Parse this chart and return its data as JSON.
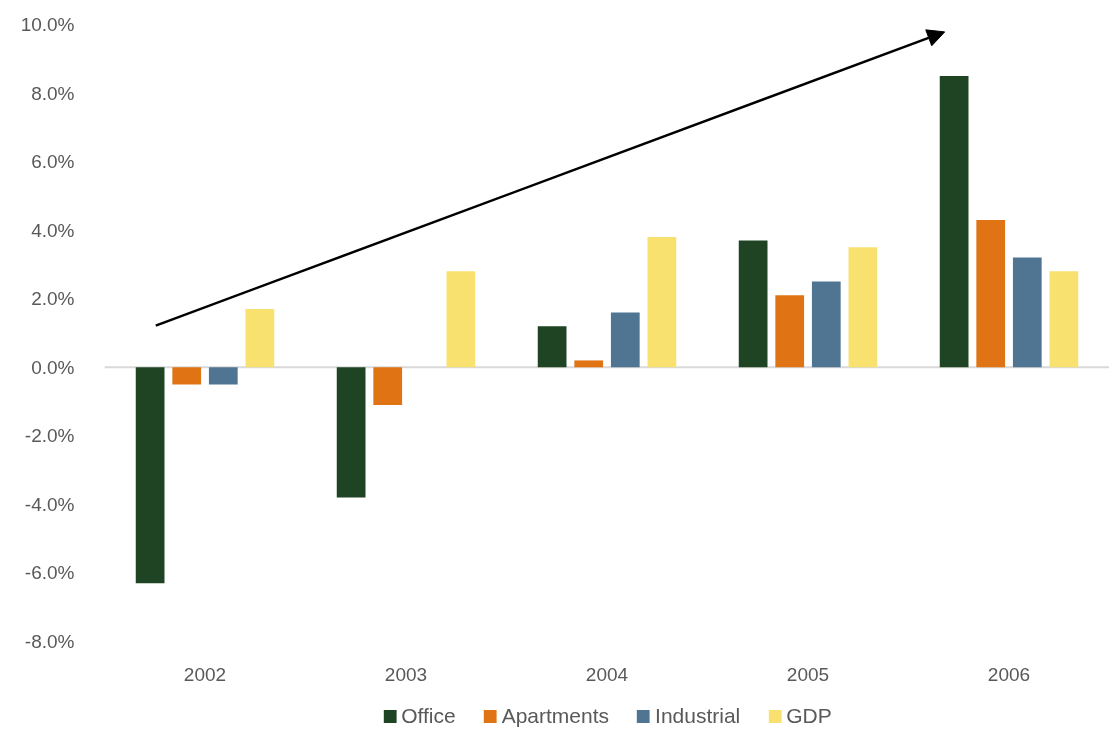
{
  "chart_data": {
    "type": "bar",
    "categories": [
      "2002",
      "2003",
      "2004",
      "2005",
      "2006"
    ],
    "series": [
      {
        "name": "Office",
        "color": "#1f4423",
        "values": [
          -6.3,
          -3.8,
          1.2,
          3.7,
          8.5
        ]
      },
      {
        "name": "Apartments",
        "color": "#e07414",
        "values": [
          -0.5,
          -1.1,
          0.2,
          2.1,
          4.3
        ]
      },
      {
        "name": "Industrial",
        "color": "#4f7592",
        "values": [
          -0.5,
          0.0,
          1.6,
          2.5,
          3.2
        ]
      },
      {
        "name": "GDP",
        "color": "#f8e16f",
        "values": [
          1.7,
          2.8,
          3.8,
          3.5,
          2.8
        ]
      }
    ],
    "ylim": [
      -8,
      10
    ],
    "yticks": [
      {
        "value": -8,
        "label": "-8.0%"
      },
      {
        "value": -6,
        "label": "-6.0%"
      },
      {
        "value": -4,
        "label": "-4.0%"
      },
      {
        "value": -2,
        "label": "-2.0%"
      },
      {
        "value": 0,
        "label": "0.0%"
      },
      {
        "value": 2,
        "label": "2.0%"
      },
      {
        "value": 4,
        "label": "4.0%"
      },
      {
        "value": 6,
        "label": "6.0%"
      },
      {
        "value": 8,
        "label": "8.0%"
      },
      {
        "value": 10,
        "label": "10.0%"
      }
    ],
    "ref_lines": [
      {
        "axis": "y",
        "value": 0,
        "color": "#d9d9d9"
      }
    ],
    "legend": "bottom"
  }
}
